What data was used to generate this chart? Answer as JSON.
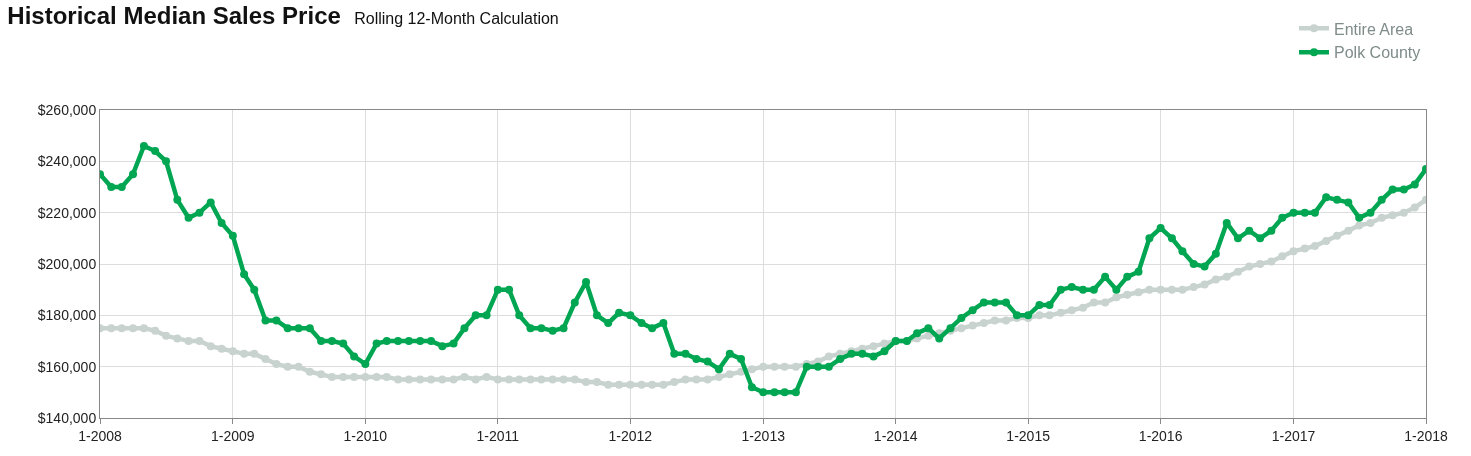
{
  "chart_data": {
    "type": "line",
    "title": "Historical Median Sales Price",
    "subtitle": "Rolling 12-Month Calculation",
    "x": [
      "2008-01",
      "2008-02",
      "2008-03",
      "2008-04",
      "2008-05",
      "2008-06",
      "2008-07",
      "2008-08",
      "2008-09",
      "2008-10",
      "2008-11",
      "2008-12",
      "2009-01",
      "2009-02",
      "2009-03",
      "2009-04",
      "2009-05",
      "2009-06",
      "2009-07",
      "2009-08",
      "2009-09",
      "2009-10",
      "2009-11",
      "2009-12",
      "2010-01",
      "2010-02",
      "2010-03",
      "2010-04",
      "2010-05",
      "2010-06",
      "2010-07",
      "2010-08",
      "2010-09",
      "2010-10",
      "2010-11",
      "2010-12",
      "2011-01",
      "2011-02",
      "2011-03",
      "2011-04",
      "2011-05",
      "2011-06",
      "2011-07",
      "2011-08",
      "2011-09",
      "2011-10",
      "2011-11",
      "2011-12",
      "2012-01",
      "2012-02",
      "2012-03",
      "2012-04",
      "2012-05",
      "2012-06",
      "2012-07",
      "2012-08",
      "2012-09",
      "2012-10",
      "2012-11",
      "2012-12",
      "2013-01",
      "2013-02",
      "2013-03",
      "2013-04",
      "2013-05",
      "2013-06",
      "2013-07",
      "2013-08",
      "2013-09",
      "2013-10",
      "2013-11",
      "2013-12",
      "2014-01",
      "2014-02",
      "2014-03",
      "2014-04",
      "2014-05",
      "2014-06",
      "2014-07",
      "2014-08",
      "2014-09",
      "2014-10",
      "2014-11",
      "2014-12",
      "2015-01",
      "2015-02",
      "2015-03",
      "2015-04",
      "2015-05",
      "2015-06",
      "2015-07",
      "2015-08",
      "2015-09",
      "2015-10",
      "2015-11",
      "2015-12",
      "2016-01",
      "2016-02",
      "2016-03",
      "2016-04",
      "2016-05",
      "2016-06",
      "2016-07",
      "2016-08",
      "2016-09",
      "2016-10",
      "2016-11",
      "2016-12",
      "2017-01",
      "2017-02",
      "2017-03",
      "2017-04",
      "2017-05",
      "2017-06",
      "2017-07",
      "2017-08",
      "2017-09",
      "2017-10",
      "2017-11",
      "2017-12",
      "2018-01"
    ],
    "series": [
      {
        "name": "Entire Area",
        "color": "#c8d3d0",
        "values": [
          175000,
          175000,
          175000,
          175000,
          175000,
          174000,
          172000,
          171000,
          170000,
          170000,
          168000,
          167000,
          166000,
          165000,
          165000,
          163000,
          161000,
          160000,
          160000,
          158000,
          157000,
          156000,
          156000,
          156000,
          156000,
          156000,
          156000,
          155000,
          155000,
          155000,
          155000,
          155000,
          155000,
          156000,
          155000,
          156000,
          155000,
          155000,
          155000,
          155000,
          155000,
          155000,
          155000,
          155000,
          154000,
          154000,
          153000,
          153000,
          153000,
          153000,
          153000,
          153000,
          154000,
          155000,
          155000,
          155000,
          156000,
          157000,
          158000,
          159000,
          160000,
          160000,
          160000,
          160000,
          161000,
          162000,
          164000,
          165000,
          166000,
          167000,
          168000,
          169000,
          170000,
          170000,
          171000,
          172000,
          173000,
          174000,
          175000,
          176000,
          177000,
          178000,
          178000,
          179000,
          179000,
          180000,
          180000,
          181000,
          182000,
          183000,
          185000,
          185000,
          187000,
          188000,
          189000,
          190000,
          190000,
          190000,
          190000,
          191000,
          192000,
          194000,
          195000,
          197000,
          199000,
          200000,
          201000,
          203000,
          205000,
          206000,
          207000,
          209000,
          211000,
          213000,
          215000,
          216000,
          218000,
          219000,
          220000,
          222000,
          225000
        ]
      },
      {
        "name": "Polk County",
        "color": "#00a651",
        "values": [
          235000,
          230000,
          230000,
          235000,
          246000,
          244000,
          240000,
          225000,
          218000,
          220000,
          224000,
          216000,
          211000,
          196000,
          190000,
          178000,
          178000,
          175000,
          175000,
          175000,
          170000,
          170000,
          169000,
          164000,
          161000,
          169000,
          170000,
          170000,
          170000,
          170000,
          170000,
          168000,
          169000,
          175000,
          180000,
          180000,
          190000,
          190000,
          180000,
          175000,
          175000,
          174000,
          175000,
          185000,
          193000,
          180000,
          177000,
          181000,
          180000,
          177000,
          175000,
          177000,
          165000,
          165000,
          163000,
          162000,
          159000,
          165000,
          163000,
          152000,
          150000,
          150000,
          150000,
          150000,
          160000,
          160000,
          160000,
          163000,
          165000,
          165000,
          164000,
          166000,
          170000,
          170000,
          173000,
          175000,
          171000,
          175000,
          179000,
          182000,
          185000,
          185000,
          185000,
          180000,
          180000,
          184000,
          184000,
          190000,
          191000,
          190000,
          190000,
          195000,
          190000,
          195000,
          197000,
          210000,
          214000,
          210000,
          205000,
          200000,
          199000,
          204000,
          216000,
          210000,
          213000,
          210000,
          213000,
          218000,
          220000,
          220000,
          220000,
          226000,
          225000,
          224000,
          218000,
          220000,
          225000,
          229000,
          229000,
          231000,
          237000
        ]
      }
    ],
    "xlim": [
      "2008-01",
      "2018-01"
    ],
    "xticks": [
      {
        "value": "2008-01",
        "label": "1-2008"
      },
      {
        "value": "2009-01",
        "label": "1-2009"
      },
      {
        "value": "2010-01",
        "label": "1-2010"
      },
      {
        "value": "2011-01",
        "label": "1-2011"
      },
      {
        "value": "2012-01",
        "label": "1-2012"
      },
      {
        "value": "2013-01",
        "label": "1-2013"
      },
      {
        "value": "2014-01",
        "label": "1-2014"
      },
      {
        "value": "2015-01",
        "label": "1-2015"
      },
      {
        "value": "2016-01",
        "label": "1-2016"
      },
      {
        "value": "2017-01",
        "label": "1-2017"
      },
      {
        "value": "2018-01",
        "label": "1-2018"
      }
    ],
    "ylim": [
      140000,
      260000
    ],
    "yticks": [
      {
        "value": 140000,
        "label": "$140,000"
      },
      {
        "value": 160000,
        "label": "$160,000"
      },
      {
        "value": 180000,
        "label": "$180,000"
      },
      {
        "value": 200000,
        "label": "$200,000"
      },
      {
        "value": 220000,
        "label": "$220,000"
      },
      {
        "value": 240000,
        "label": "$240,000"
      },
      {
        "value": 260000,
        "label": "$260,000"
      }
    ],
    "grid": true,
    "legend": "top right",
    "marker": "circle",
    "line_style": "solid"
  }
}
